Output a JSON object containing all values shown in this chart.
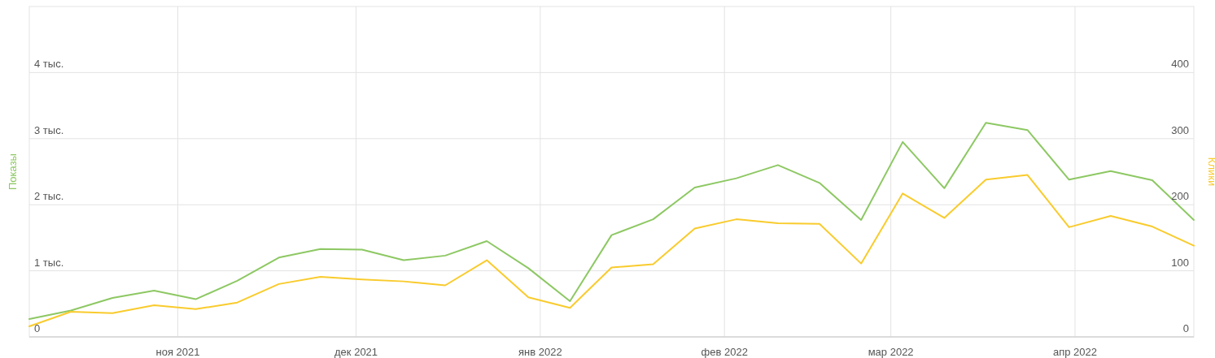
{
  "chart_data": {
    "type": "line",
    "ylabel": "Показы",
    "y2label": "Клики",
    "x": [
      "2021-10-07",
      "2021-10-14",
      "2021-10-21",
      "2021-10-28",
      "2021-11-04",
      "2021-11-11",
      "2021-11-18",
      "2021-11-25",
      "2021-12-02",
      "2021-12-09",
      "2021-12-16",
      "2021-12-23",
      "2021-12-30",
      "2022-01-06",
      "2022-01-13",
      "2022-01-20",
      "2022-01-27",
      "2022-02-03",
      "2022-02-10",
      "2022-02-17",
      "2022-02-24",
      "2022-03-03",
      "2022-03-10",
      "2022-03-17",
      "2022-03-24",
      "2022-03-31",
      "2022-04-07",
      "2022-04-14",
      "2022-04-21"
    ],
    "xlim": [
      "2021-10-07",
      "2022-04-21"
    ],
    "xticks": [
      {
        "value": "2021-11-01",
        "label": "ноя 2021"
      },
      {
        "value": "2021-12-01",
        "label": "дек 2021"
      },
      {
        "value": "2022-01-01",
        "label": "янв 2022"
      },
      {
        "value": "2022-02-01",
        "label": "фев 2022"
      },
      {
        "value": "2022-03-01",
        "label": "мар 2022"
      },
      {
        "value": "2022-04-01",
        "label": "апр 2022"
      }
    ],
    "ylim": [
      0,
      5
    ],
    "yticks": [
      0,
      {
        "value": 1,
        "label": "1 тыс."
      },
      {
        "value": 2,
        "label": "2 тыс."
      },
      {
        "value": 3,
        "label": "3 тыс."
      },
      {
        "value": 4,
        "label": "4 тыс."
      }
    ],
    "y2lim": [
      0,
      500
    ],
    "y2ticks": [
      0,
      100,
      200,
      300,
      400
    ],
    "grid": true,
    "marker": "none",
    "line_style": "solid",
    "series": [
      {
        "color": "#8dc863",
        "values": [
          0.27,
          0.4,
          0.59,
          0.7,
          0.57,
          0.85,
          1.2,
          1.33,
          1.32,
          1.16,
          1.23,
          1.45,
          1.04,
          0.54,
          1.54,
          1.78,
          2.26,
          2.4,
          2.6,
          2.33,
          1.77,
          2.95,
          2.25,
          3.24,
          3.13,
          2.38,
          2.51,
          2.37,
          1.77
        ]
      },
      {
        "color": "#f9cb2c",
        "axis": "y2",
        "values": [
          16,
          38,
          36,
          48,
          42,
          52,
          80,
          91,
          87,
          84,
          78,
          116,
          60,
          44,
          105,
          110,
          164,
          178,
          172,
          171,
          111,
          217,
          180,
          238,
          245,
          166,
          183,
          167,
          138
        ]
      }
    ]
  }
}
